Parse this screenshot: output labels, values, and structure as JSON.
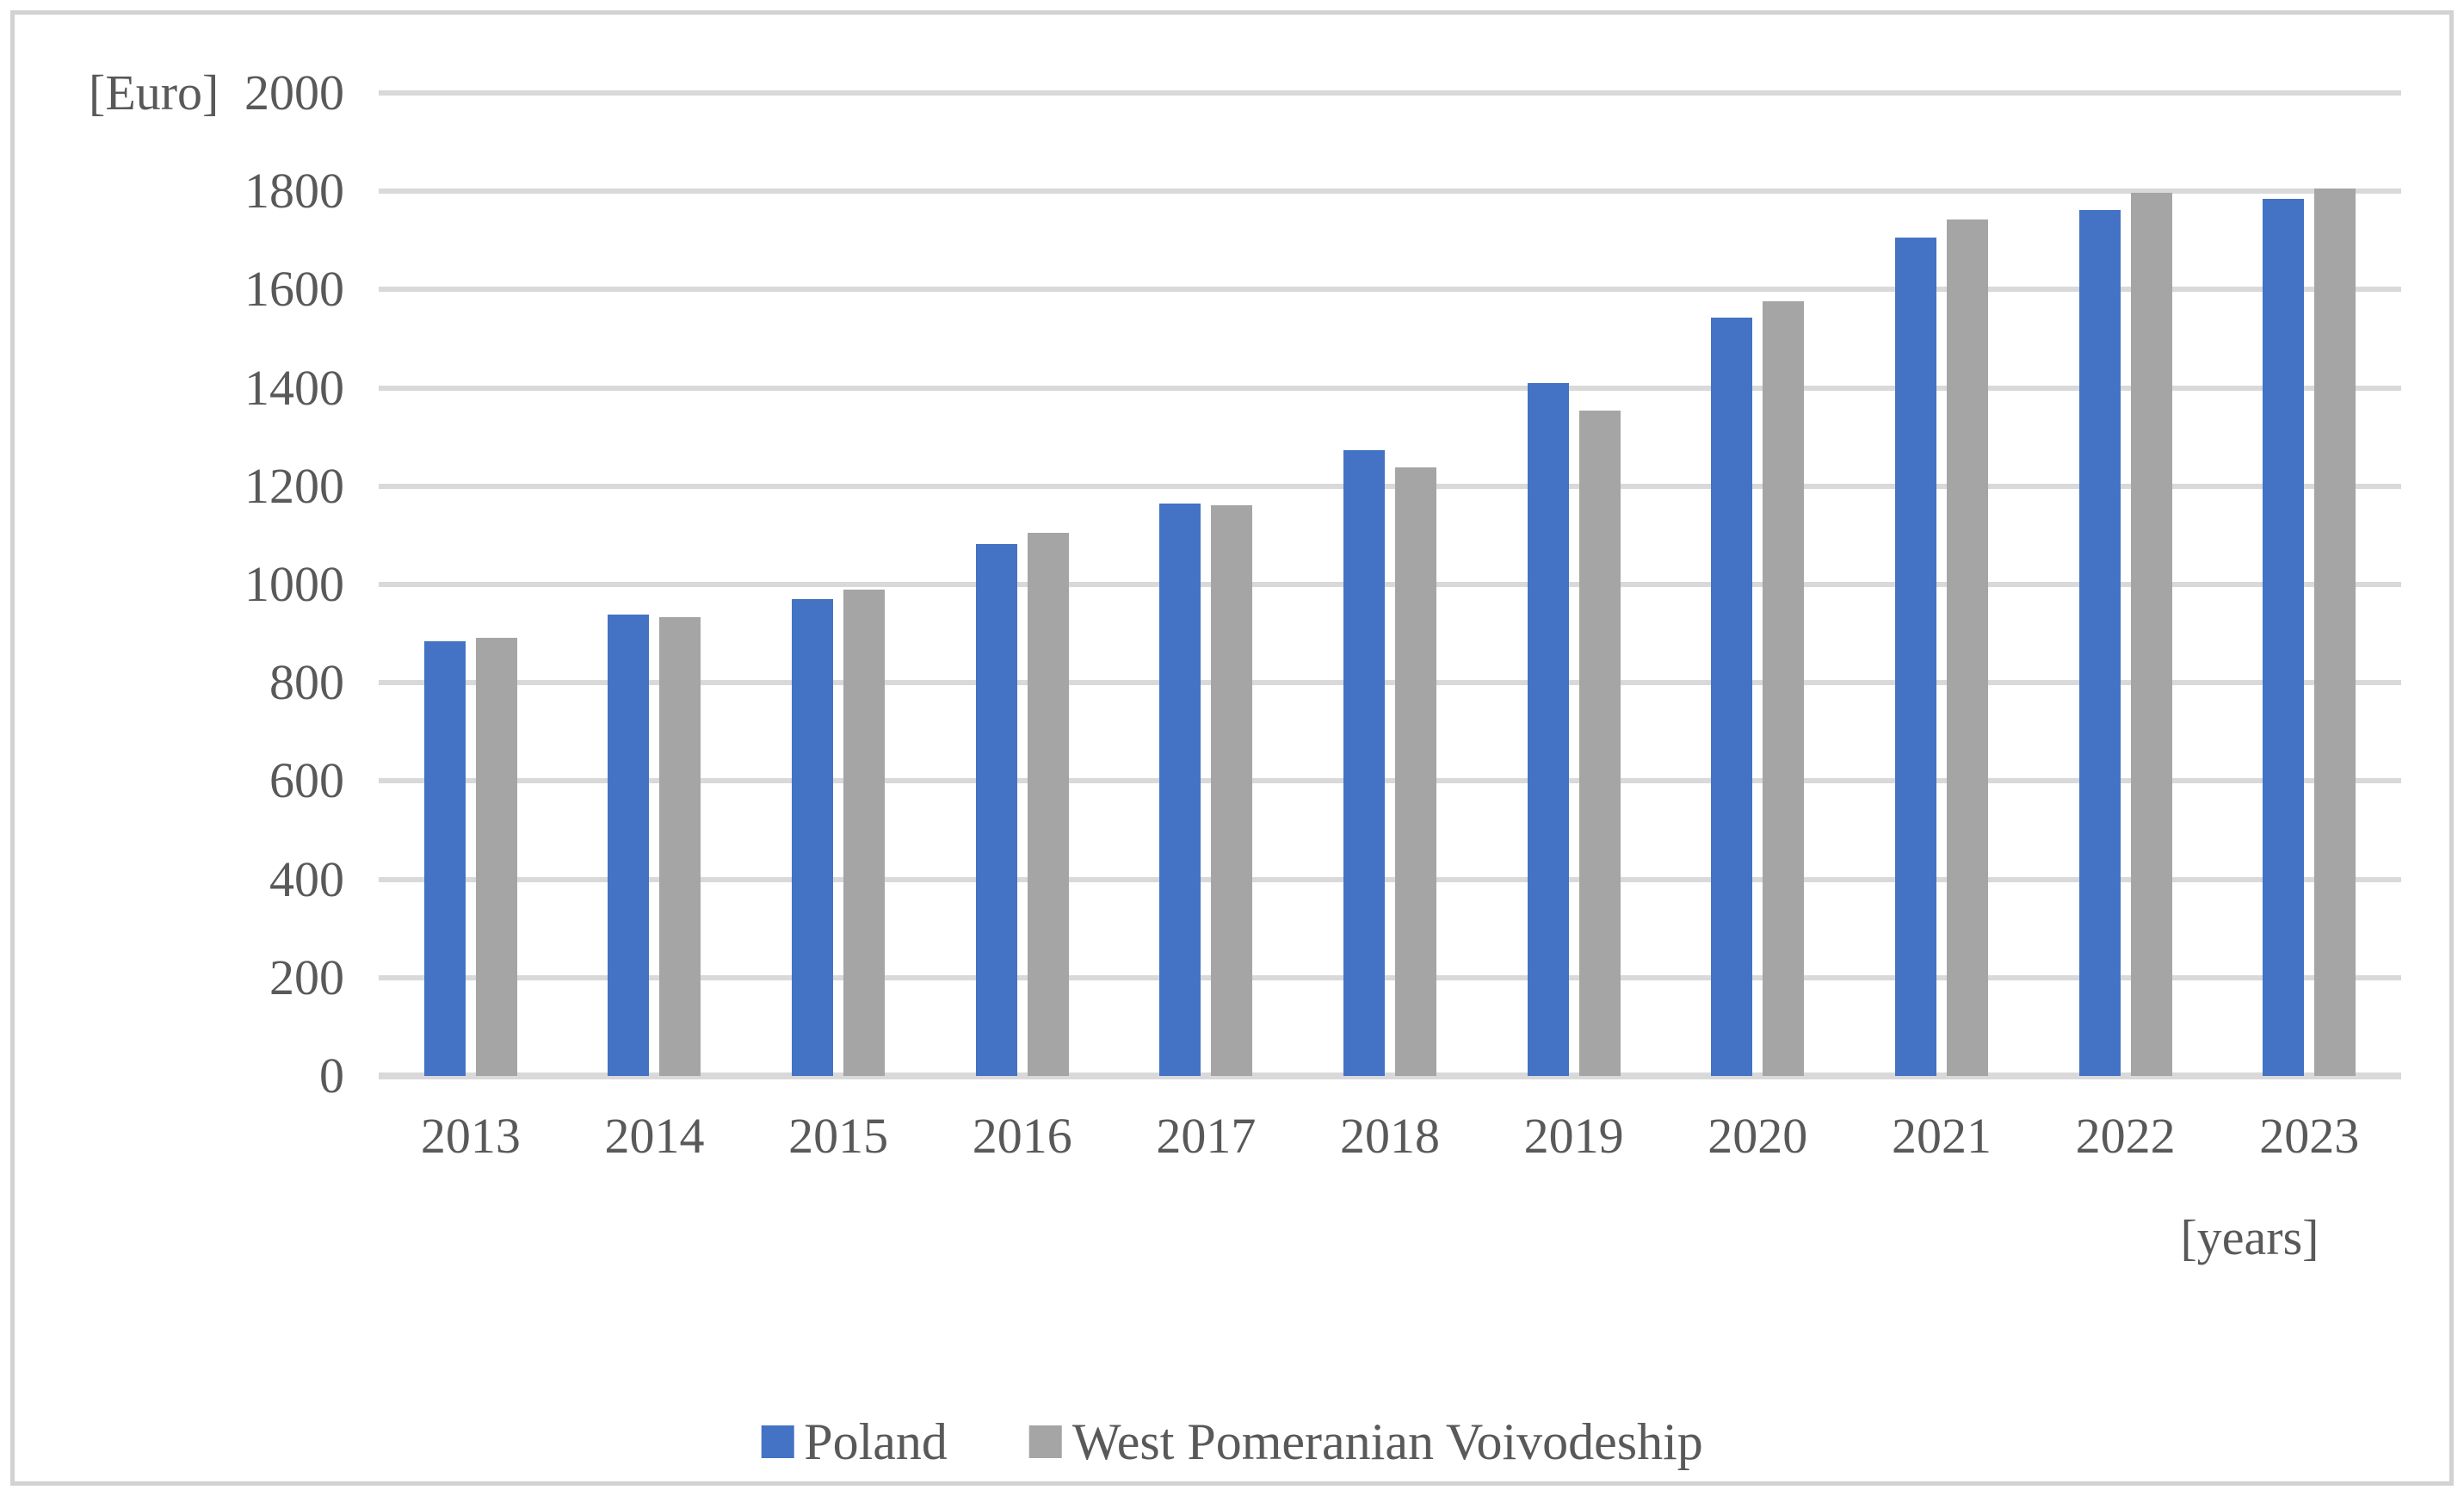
{
  "frame": {
    "border_color": "#d2d2d2",
    "background": "#ffffff"
  },
  "text_color": "#595959",
  "gridline_color": "#d9d9d9",
  "chart_data": {
    "type": "bar",
    "title": "",
    "ylabel_unit": "[Euro]",
    "xlabel": "[years]",
    "categories": [
      "2013",
      "2014",
      "2015",
      "2016",
      "2017",
      "2018",
      "2019",
      "2020",
      "2021",
      "2022",
      "2023"
    ],
    "series": [
      {
        "name": "Poland",
        "color": "#4472C4",
        "values": [
          885,
          938,
          970,
          1082,
          1164,
          1273,
          1410,
          1543,
          1706,
          1762,
          1784
        ]
      },
      {
        "name": "West Pomeranian Voivodeship",
        "color": "#A5A5A5",
        "values": [
          891,
          933,
          990,
          1105,
          1161,
          1239,
          1354,
          1577,
          1742,
          1796,
          1805
        ]
      }
    ],
    "ylim": [
      0,
      2000
    ],
    "ytick_step": 200,
    "yticks": [
      0,
      200,
      400,
      600,
      800,
      1000,
      1200,
      1400,
      1600,
      1800,
      2000
    ],
    "grid": true,
    "gridlines_horizontal_only": true,
    "legend_position": "bottom"
  }
}
